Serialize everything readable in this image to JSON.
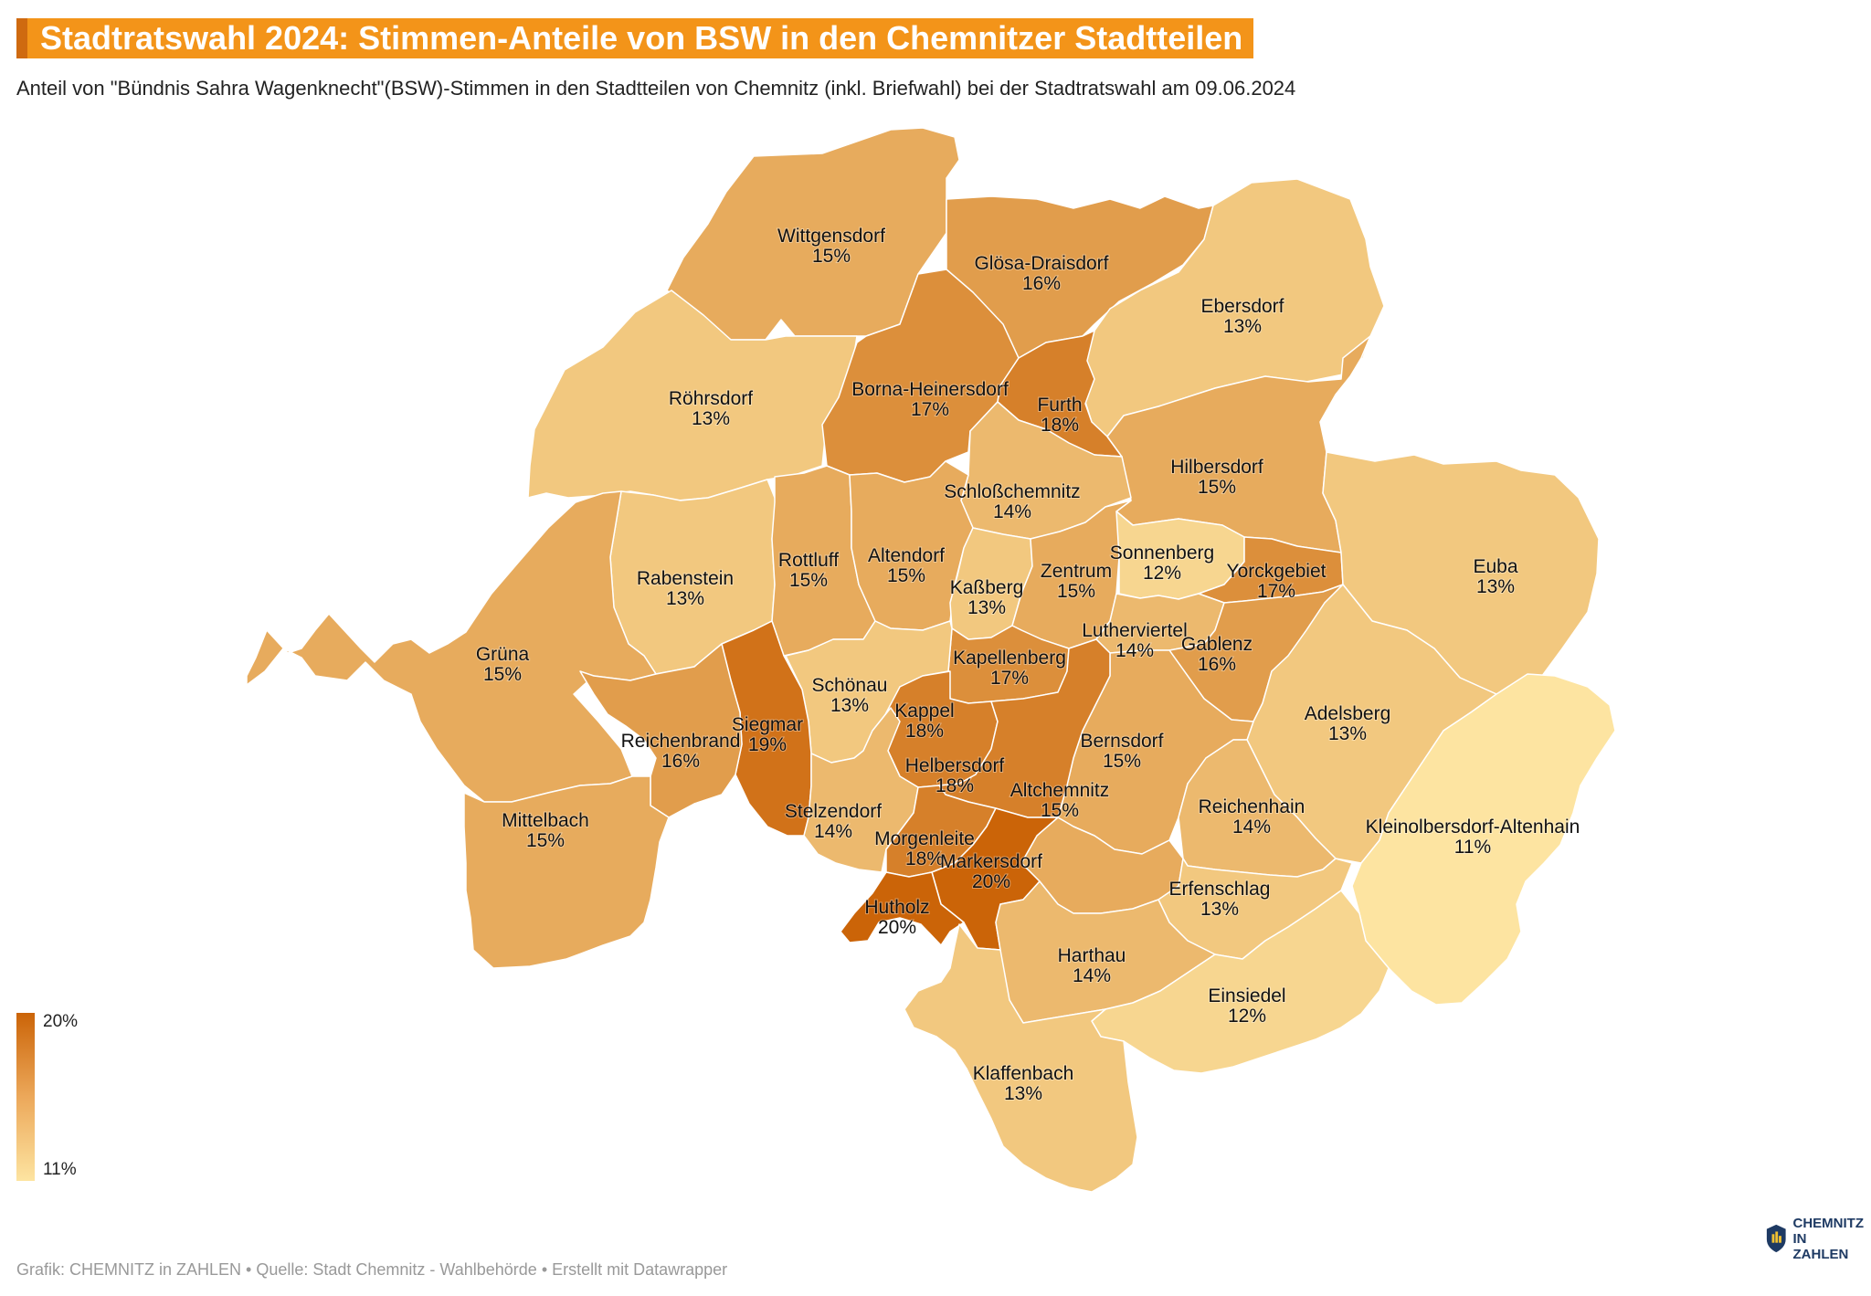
{
  "header": {
    "title": "Stadtratswahl 2024: Stimmen-Anteile von BSW in den Chemnitzer Stadtteilen",
    "subtitle": "Anteil von \"Bündnis Sahra Wagenknecht\"(BSW)-Stimmen in den Stadtteilen von Chemnitz (inkl. Briefwahl) bei der Stadtratswahl am 09.06.2024"
  },
  "legend": {
    "max_label": "20%",
    "min_label": "11%",
    "max_value": 20,
    "min_value": 11
  },
  "colors": {
    "low": "#fde4a1",
    "high": "#cb6408",
    "title_bg": "#f39419",
    "title_accent": "#cf6a10"
  },
  "chart_data": {
    "type": "choropleth",
    "unit": "%",
    "districts": [
      {
        "name": "Wittgensdorf",
        "value": 15
      },
      {
        "name": "Glösa-Draisdorf",
        "value": 16
      },
      {
        "name": "Ebersdorf",
        "value": 13
      },
      {
        "name": "Röhrsdorf",
        "value": 13
      },
      {
        "name": "Borna-Heinersdorf",
        "value": 17
      },
      {
        "name": "Furth",
        "value": 18
      },
      {
        "name": "Hilbersdorf",
        "value": 15
      },
      {
        "name": "Schloßchemnitz",
        "value": 14
      },
      {
        "name": "Rabenstein",
        "value": 13
      },
      {
        "name": "Rottluff",
        "value": 15
      },
      {
        "name": "Altendorf",
        "value": 15
      },
      {
        "name": "Kaßberg",
        "value": 13
      },
      {
        "name": "Zentrum",
        "value": 15
      },
      {
        "name": "Sonnenberg",
        "value": 12
      },
      {
        "name": "Yorckgebiet",
        "value": 17
      },
      {
        "name": "Euba",
        "value": 13
      },
      {
        "name": "Grüna",
        "value": 15
      },
      {
        "name": "Lutherviertel",
        "value": 14
      },
      {
        "name": "Gablenz",
        "value": 16
      },
      {
        "name": "Kapellenberg",
        "value": 17
      },
      {
        "name": "Schönau",
        "value": 13
      },
      {
        "name": "Siegmar",
        "value": 19
      },
      {
        "name": "Kappel",
        "value": 18
      },
      {
        "name": "Reichenbrand",
        "value": 16
      },
      {
        "name": "Adelsberg",
        "value": 13
      },
      {
        "name": "Bernsdorf",
        "value": 15
      },
      {
        "name": "Helbersdorf",
        "value": 18
      },
      {
        "name": "Altchemnitz",
        "value": 15
      },
      {
        "name": "Reichenhain",
        "value": 14
      },
      {
        "name": "Kleinolbersdorf-Altenhain",
        "value": 11
      },
      {
        "name": "Mittelbach",
        "value": 15
      },
      {
        "name": "Stelzendorf",
        "value": 14
      },
      {
        "name": "Morgenleite",
        "value": 18
      },
      {
        "name": "Markersdorf",
        "value": 20
      },
      {
        "name": "Erfenschlag",
        "value": 13
      },
      {
        "name": "Hutholz",
        "value": 20
      },
      {
        "name": "Harthau",
        "value": 14
      },
      {
        "name": "Einsiedel",
        "value": 12
      },
      {
        "name": "Klaffenbach",
        "value": 13
      }
    ]
  },
  "footer": {
    "credit": "Grafik: CHEMNITZ in ZAHLEN • Quelle: Stadt Chemnitz - Wahlbehörde • Erstellt mit Datawrapper",
    "logo_line1": "CHEMNITZ",
    "logo_line2": "IN ZAHLEN"
  }
}
